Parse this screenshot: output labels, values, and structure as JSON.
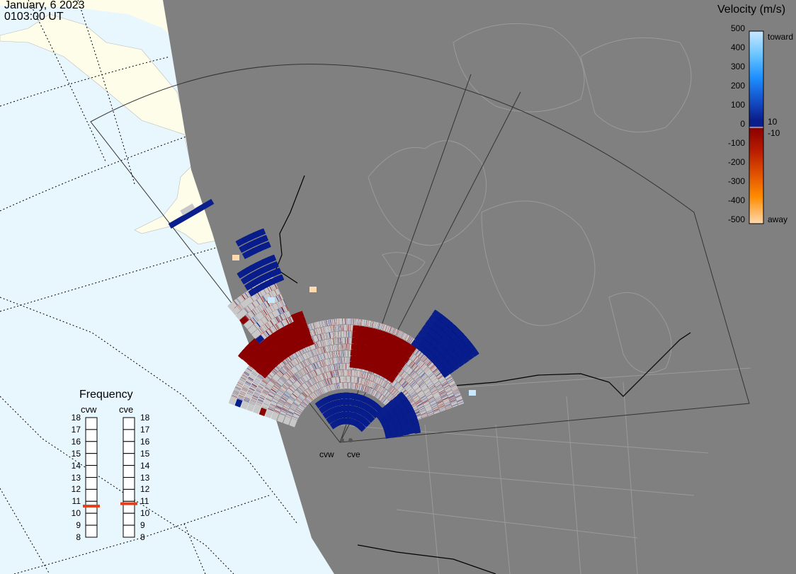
{
  "header": {
    "date": "January, 6 2023",
    "time": "0103:00 UT"
  },
  "velocity_scale": {
    "title": "Velocity (m/s)",
    "ticks": [
      "500",
      "400",
      "300",
      "200",
      "100",
      "0",
      "-100",
      "-200",
      "-300",
      "-400",
      "-500"
    ],
    "label_toward": "toward",
    "label_away": "away",
    "label_pos": "10",
    "label_neg": "-10",
    "colors": {
      "toward_light": "#c8e8ff",
      "toward_mid": "#1e90ff",
      "toward_dark": "#0a1f8c",
      "zero": "#c8c8c8",
      "away_dark": "#8b0000",
      "away_mid": "#ff8c00",
      "away_light": "#ffd9b0"
    }
  },
  "frequency": {
    "title": "Frequency",
    "radars": [
      "cvw",
      "cve"
    ],
    "ticks": [
      "18",
      "17",
      "16",
      "15",
      "14",
      "13",
      "12",
      "11",
      "10",
      "9",
      "8"
    ],
    "values_mhz": {
      "cvw": 10.6,
      "cve": 10.8
    }
  },
  "radar_sites": {
    "west": "cvw",
    "east": "cve"
  },
  "colors": {
    "ocean": "#e8f6fe",
    "land": "#808080",
    "ice": "#fdfdea",
    "ground_scatter": "#c8c8c8"
  }
}
